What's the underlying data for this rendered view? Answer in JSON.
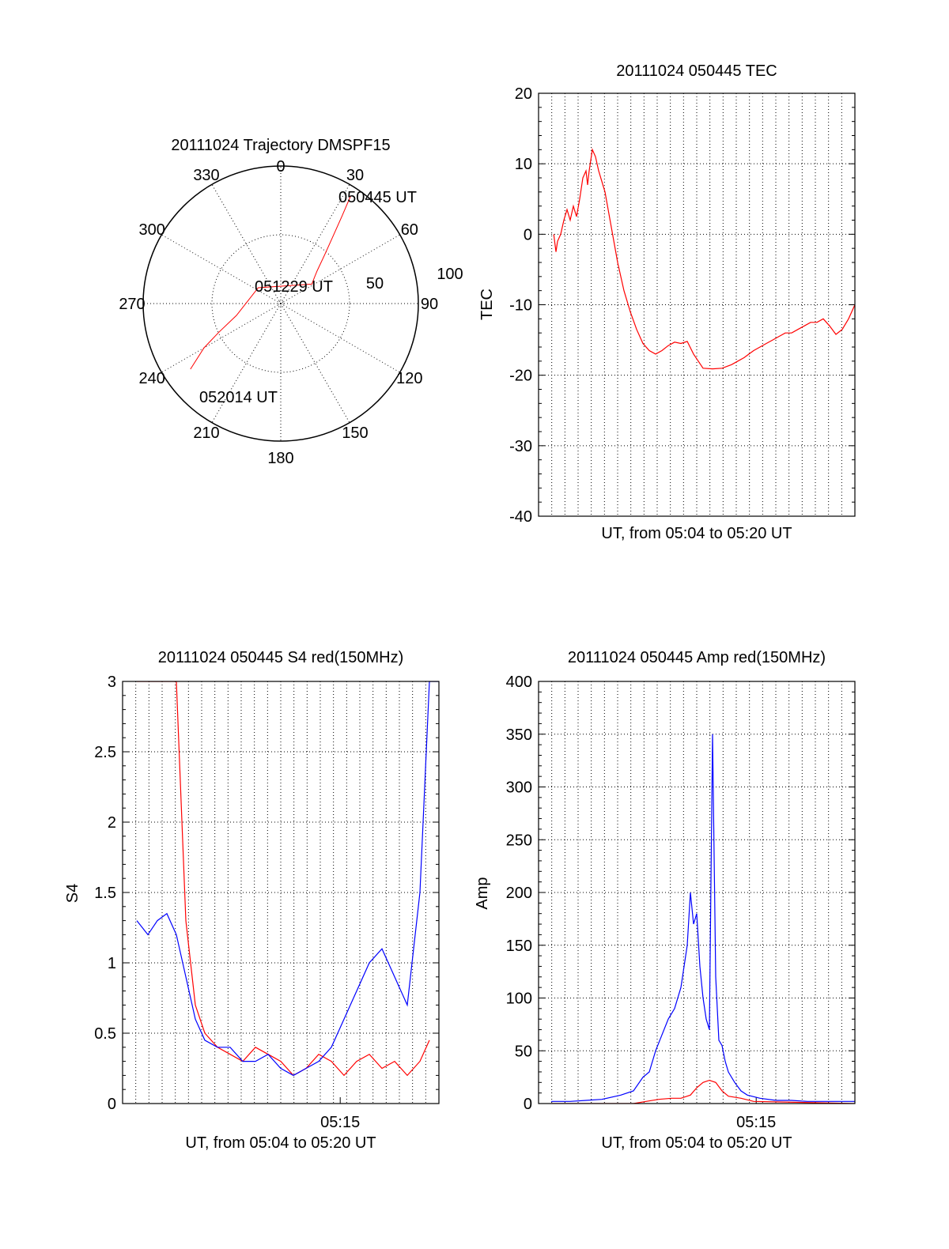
{
  "chart_data": [
    {
      "type": "polar-trajectory",
      "title": "20111024 Trajectory DMSPF15",
      "azimuth_labels": [
        "0",
        "30",
        "60",
        "90",
        "120",
        "150",
        "180",
        "210",
        "240",
        "270",
        "300",
        "330"
      ],
      "radius_labels": [
        "50",
        "100"
      ],
      "grid": true,
      "series_color": "#ff0000",
      "trajectory": [
        {
          "az": 33,
          "el": 6,
          "label": "050445 UT"
        },
        {
          "az": 35,
          "el": 20
        },
        {
          "az": 38,
          "el": 35
        },
        {
          "az": 42,
          "el": 47
        },
        {
          "az": 48,
          "el": 58
        },
        {
          "az": 52,
          "el": 62
        },
        {
          "az": 58,
          "el": 66
        },
        {
          "az": 305,
          "el": 72,
          "label": "051229 UT"
        },
        {
          "az": 255,
          "el": 60
        },
        {
          "az": 245,
          "el": 45
        },
        {
          "az": 240,
          "el": 32
        },
        {
          "az": 234,
          "el": 17,
          "label": "052014 UT"
        }
      ]
    },
    {
      "type": "line",
      "title": "20111024 050445 TEC",
      "xlabel": "UT, from 05:04 to 05:20 UT",
      "ylabel": "TEC",
      "ylim": [
        -40,
        20
      ],
      "yticks": [
        "20",
        "10",
        "0",
        "-10",
        "-20",
        "-30",
        "-40"
      ],
      "xlim": [
        0,
        1000
      ],
      "xtick_labels": [],
      "grid": true,
      "series": [
        {
          "color": "#ff0000",
          "x": [
            48,
            55,
            60,
            70,
            80,
            90,
            100,
            110,
            120,
            130,
            140,
            150,
            155,
            160,
            170,
            180,
            190,
            210,
            230,
            250,
            270,
            290,
            310,
            330,
            350,
            370,
            390,
            410,
            430,
            450,
            470,
            490,
            520,
            550,
            580,
            610,
            630,
            650,
            665,
            680,
            700,
            720,
            740,
            760,
            780,
            800,
            820,
            840,
            860,
            880,
            900,
            920,
            940,
            960,
            980,
            1000
          ],
          "y": [
            0,
            -2.5,
            -1,
            0,
            2,
            3.5,
            2,
            4,
            2.5,
            5,
            8,
            9,
            7,
            9,
            12,
            11,
            9,
            6,
            1,
            -4,
            -8,
            -11,
            -13.5,
            -15.5,
            -16.5,
            -17,
            -16.5,
            -15.8,
            -15.3,
            -15.5,
            -15.2,
            -17,
            -19,
            -19.1,
            -19,
            -18.5,
            -18,
            -17.5,
            -17,
            -16.5,
            -16,
            -15.5,
            -15,
            -14.5,
            -14,
            -14,
            -13.5,
            -13,
            -12.5,
            -12.5,
            -12,
            -13,
            -14.2,
            -13.5,
            -12,
            -10
          ]
        }
      ]
    },
    {
      "type": "line",
      "title": "20111024 050445 S4 red(150MHz)",
      "xlabel": "UT, from 05:04 to 05:20 UT",
      "ylabel": "S4",
      "ylim": [
        0,
        3
      ],
      "yticks": [
        "3",
        "2.5",
        "2",
        "1.5",
        "1",
        "0.5",
        "0"
      ],
      "xlim": [
        0,
        1000
      ],
      "xtick_labels": [
        {
          "x": 688,
          "label": "05:15"
        }
      ],
      "grid": true,
      "series": [
        {
          "color": "#ff0000",
          "x": [
            45,
            80,
            110,
            140,
            170,
            200,
            230,
            260,
            300,
            340,
            380,
            420,
            460,
            500,
            540,
            580,
            620,
            660,
            700,
            740,
            780,
            820,
            860,
            900,
            940,
            970
          ],
          "y": [
            3,
            3,
            3,
            3,
            3,
            1.3,
            0.7,
            0.5,
            0.4,
            0.35,
            0.3,
            0.4,
            0.35,
            0.3,
            0.2,
            0.25,
            0.35,
            0.3,
            0.2,
            0.3,
            0.35,
            0.25,
            0.3,
            0.2,
            0.3,
            0.45
          ]
        },
        {
          "color": "#0000ff",
          "x": [
            45,
            80,
            110,
            140,
            170,
            200,
            230,
            260,
            300,
            340,
            380,
            420,
            460,
            500,
            540,
            580,
            620,
            660,
            700,
            740,
            780,
            820,
            860,
            900,
            940,
            970,
            1000
          ],
          "y": [
            1.3,
            1.2,
            1.3,
            1.35,
            1.2,
            0.9,
            0.6,
            0.45,
            0.4,
            0.4,
            0.3,
            0.3,
            0.35,
            0.25,
            0.2,
            0.25,
            0.3,
            0.4,
            0.6,
            0.8,
            1.0,
            1.1,
            0.9,
            0.7,
            1.5,
            3,
            3
          ]
        }
      ]
    },
    {
      "type": "line",
      "title": "20111024 050445 Amp red(150MHz)",
      "xlabel": "UT, from 05:04 to 05:20 UT",
      "ylabel": "Amp",
      "ylim": [
        0,
        400
      ],
      "yticks": [
        "400",
        "350",
        "300",
        "250",
        "200",
        "150",
        "100",
        "50",
        "0"
      ],
      "xlim": [
        0,
        1000
      ],
      "xtick_labels": [
        {
          "x": 688,
          "label": "05:15"
        }
      ],
      "grid": true,
      "series": [
        {
          "color": "#ff0000",
          "x": [
            40,
            300,
            340,
            380,
            420,
            450,
            480,
            500,
            520,
            540,
            560,
            580,
            600,
            640,
            680,
            1000
          ],
          "y": [
            0,
            0,
            2,
            4,
            5,
            5,
            8,
            15,
            20,
            22,
            20,
            12,
            7,
            5,
            2,
            0
          ]
        },
        {
          "color": "#0000ff",
          "x": [
            40,
            100,
            150,
            200,
            260,
            300,
            330,
            350,
            370,
            390,
            410,
            430,
            450,
            470,
            480,
            490,
            500,
            510,
            520,
            530,
            540,
            550,
            560,
            570,
            580,
            590,
            600,
            620,
            640,
            660,
            700,
            750,
            800,
            850,
            900,
            1000
          ],
          "y": [
            2,
            2,
            3,
            4,
            8,
            12,
            25,
            30,
            50,
            65,
            80,
            90,
            110,
            150,
            200,
            170,
            180,
            130,
            100,
            80,
            70,
            350,
            120,
            60,
            55,
            40,
            30,
            20,
            12,
            8,
            5,
            3,
            3,
            2,
            2,
            2
          ]
        }
      ]
    }
  ]
}
